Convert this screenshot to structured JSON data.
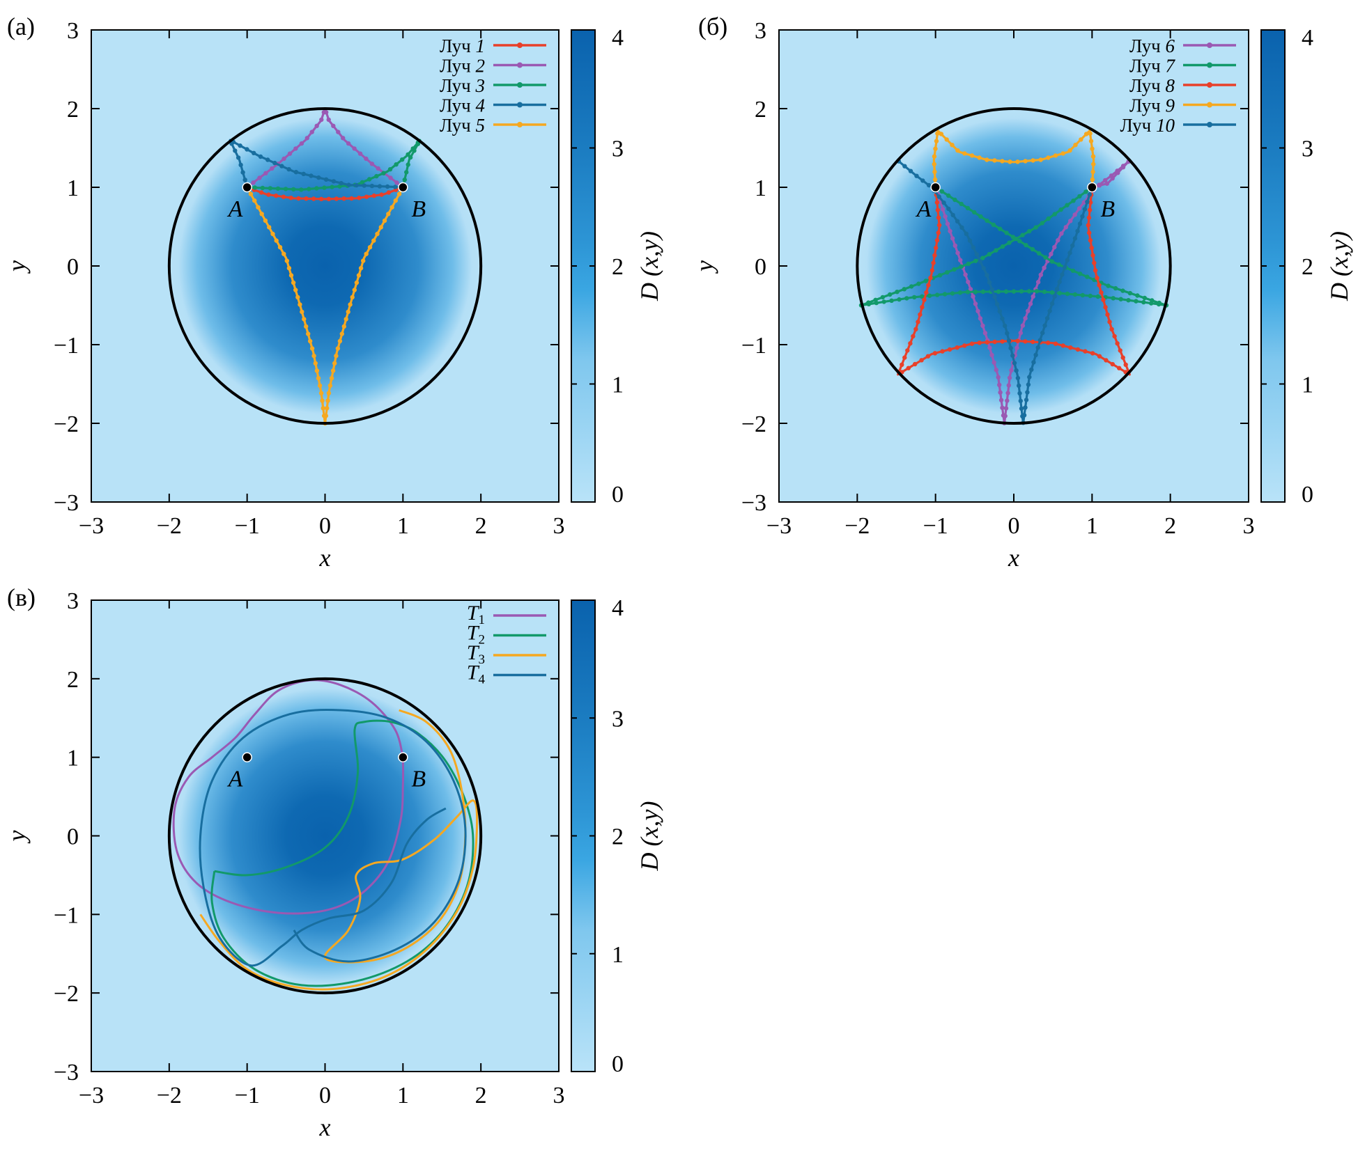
{
  "figure": {
    "circle_color": "#000000",
    "field_colors": {
      "outside": "#b8e2f7",
      "low": "#b4dff6",
      "high": "#0a62ad"
    },
    "colorbar": {
      "label": "D (x,y)",
      "ticks": [
        "0",
        "1",
        "2",
        "3",
        "4"
      ],
      "range": [
        0,
        4
      ]
    },
    "marker_labels": {
      "A": "A",
      "B": "B"
    }
  },
  "chart_data": [
    {
      "type": "line",
      "panel_label": "(а)",
      "xlabel": "x",
      "ylabel": "y",
      "xlim": [
        -3,
        3
      ],
      "ylim": [
        -3,
        3
      ],
      "xticks": [
        "−3",
        "−2",
        "−1",
        "0",
        "1",
        "2",
        "3"
      ],
      "yticks": [
        "−3",
        "−2",
        "−1",
        "0",
        "1",
        "2",
        "3"
      ],
      "circle_radius": 2,
      "points": [
        {
          "name": "A",
          "x": -1,
          "y": 1
        },
        {
          "name": "B",
          "x": 1,
          "y": 1
        }
      ],
      "legend_position": "top-right",
      "series": [
        {
          "name": "Луч 1",
          "label": "Луч",
          "num": "1",
          "color": "#e8402a",
          "markers": true,
          "points": [
            [
              -1,
              1
            ],
            [
              -0.75,
              0.91
            ],
            [
              -0.4,
              0.86
            ],
            [
              0,
              0.85
            ],
            [
              0.4,
              0.86
            ],
            [
              0.75,
              0.91
            ],
            [
              1,
              1
            ]
          ]
        },
        {
          "name": "Луч 2",
          "label": "Луч",
          "num": "2",
          "color": "#9a59b3",
          "markers": true,
          "points": [
            [
              -1,
              1
            ],
            [
              -0.6,
              1.3
            ],
            [
              -0.25,
              1.6
            ],
            [
              -0.05,
              1.85
            ],
            [
              0,
              2.0
            ],
            [
              0.05,
              1.85
            ],
            [
              0.25,
              1.6
            ],
            [
              0.6,
              1.3
            ],
            [
              1,
              1
            ]
          ]
        },
        {
          "name": "Луч 3",
          "label": "Луч",
          "num": "3",
          "color": "#12996a",
          "markers": true,
          "points": [
            [
              -1,
              1
            ],
            [
              -0.3,
              0.97
            ],
            [
              0.4,
              1.03
            ],
            [
              0.8,
              1.2
            ],
            [
              1.05,
              1.4
            ],
            [
              1.22,
              1.6
            ],
            [
              1.08,
              1.35
            ],
            [
              1,
              1
            ]
          ]
        },
        {
          "name": "Луч 4",
          "label": "Луч",
          "num": "4",
          "color": "#186e9f",
          "markers": true,
          "points": [
            [
              1,
              1
            ],
            [
              0.3,
              1.03
            ],
            [
              -0.4,
              1.2
            ],
            [
              -0.85,
              1.4
            ],
            [
              -1.22,
              1.6
            ],
            [
              -1.1,
              1.35
            ],
            [
              -1,
              1
            ]
          ]
        },
        {
          "name": "Луч 5",
          "label": "Луч",
          "num": "5",
          "color": "#f5a821",
          "markers": true,
          "points": [
            [
              -1,
              1
            ],
            [
              -0.75,
              0.55
            ],
            [
              -0.5,
              0.1
            ],
            [
              -0.32,
              -0.5
            ],
            [
              -0.15,
              -1.1
            ],
            [
              -0.05,
              -1.6
            ],
            [
              0,
              -2.0
            ],
            [
              0.05,
              -1.6
            ],
            [
              0.15,
              -1.1
            ],
            [
              0.32,
              -0.5
            ],
            [
              0.5,
              0.1
            ],
            [
              0.75,
              0.55
            ],
            [
              1,
              1
            ]
          ]
        }
      ]
    },
    {
      "type": "line",
      "panel_label": "(б)",
      "xlabel": "x",
      "ylabel": "y",
      "xlim": [
        -3,
        3
      ],
      "ylim": [
        -3,
        3
      ],
      "xticks": [
        "−3",
        "−2",
        "−1",
        "0",
        "1",
        "2",
        "3"
      ],
      "yticks": [
        "−3",
        "−2",
        "−1",
        "0",
        "1",
        "2",
        "3"
      ],
      "circle_radius": 2,
      "points": [
        {
          "name": "A",
          "x": -1,
          "y": 1
        },
        {
          "name": "B",
          "x": 1,
          "y": 1
        }
      ],
      "legend_position": "top-right",
      "series": [
        {
          "name": "Луч 6",
          "label": "Луч",
          "num": "6",
          "color": "#9a59b3",
          "markers": true,
          "points": [
            [
              -1,
              1
            ],
            [
              -0.8,
              0.4
            ],
            [
              -0.55,
              -0.3
            ],
            [
              -0.35,
              -0.9
            ],
            [
              -0.2,
              -1.4
            ],
            [
              -0.12,
              -2.0
            ],
            [
              -0.05,
              -1.4
            ],
            [
              0.1,
              -0.8
            ],
            [
              0.35,
              -0.1
            ],
            [
              0.6,
              0.4
            ],
            [
              0.85,
              0.75
            ],
            [
              1.05,
              1.0
            ],
            [
              1.25,
              1.15
            ],
            [
              1.47,
              1.33
            ],
            [
              1.2,
              1.05
            ],
            [
              1,
              1
            ]
          ]
        },
        {
          "name": "Луч 7",
          "label": "Луч",
          "num": "7",
          "color": "#12996a",
          "markers": true,
          "points": [
            [
              -1,
              1
            ],
            [
              -0.3,
              0.55
            ],
            [
              0.5,
              0.05
            ],
            [
              1.2,
              -0.25
            ],
            [
              1.95,
              -0.5
            ],
            [
              1.2,
              -0.4
            ],
            [
              0.3,
              -0.32
            ],
            [
              -0.6,
              -0.33
            ],
            [
              -1.3,
              -0.4
            ],
            [
              -1.95,
              -0.5
            ],
            [
              -1.2,
              -0.22
            ],
            [
              -0.4,
              0.1
            ],
            [
              0.3,
              0.5
            ],
            [
              1,
              1
            ]
          ]
        },
        {
          "name": "Луч 8",
          "label": "Луч",
          "num": "8",
          "color": "#e8402a",
          "markers": true,
          "points": [
            [
              -1,
              1
            ],
            [
              -0.95,
              0.5
            ],
            [
              -1.05,
              -0.1
            ],
            [
              -1.25,
              -0.8
            ],
            [
              -1.48,
              -1.38
            ],
            [
              -1.05,
              -1.12
            ],
            [
              -0.5,
              -0.98
            ],
            [
              0,
              -0.95
            ],
            [
              0.5,
              -0.98
            ],
            [
              1.05,
              -1.12
            ],
            [
              1.48,
              -1.38
            ],
            [
              1.25,
              -0.8
            ],
            [
              1.05,
              -0.1
            ],
            [
              0.95,
              0.5
            ],
            [
              1,
              1
            ]
          ]
        },
        {
          "name": "Луч 9",
          "label": "Луч",
          "num": "9",
          "color": "#f5a821",
          "markers": true,
          "points": [
            [
              -1,
              1
            ],
            [
              -1.02,
              1.35
            ],
            [
              -0.97,
              1.72
            ],
            [
              -0.7,
              1.45
            ],
            [
              -0.35,
              1.35
            ],
            [
              0,
              1.32
            ],
            [
              0.35,
              1.35
            ],
            [
              0.7,
              1.45
            ],
            [
              0.97,
              1.72
            ],
            [
              1.02,
              1.35
            ],
            [
              1,
              1
            ]
          ]
        },
        {
          "name": "Луч 10",
          "label": "Луч",
          "num": "10",
          "color": "#186e9f",
          "markers": true,
          "points": [
            [
              -1.47,
              1.33
            ],
            [
              -1.25,
              1.15
            ],
            [
              -1.05,
              1.0
            ],
            [
              -0.85,
              0.75
            ],
            [
              -0.6,
              0.4
            ],
            [
              -0.35,
              -0.1
            ],
            [
              -0.1,
              -0.8
            ],
            [
              0.05,
              -1.4
            ],
            [
              0.12,
              -2.0
            ],
            [
              0.2,
              -1.4
            ],
            [
              0.35,
              -0.9
            ],
            [
              0.55,
              -0.3
            ],
            [
              0.8,
              0.4
            ],
            [
              1,
              1
            ]
          ]
        }
      ]
    },
    {
      "type": "line",
      "panel_label": "(в)",
      "xlabel": "x",
      "ylabel": "y",
      "xlim": [
        -3,
        3
      ],
      "ylim": [
        -3,
        3
      ],
      "xticks": [
        "−3",
        "−2",
        "−1",
        "0",
        "1",
        "2",
        "3"
      ],
      "yticks": [
        "−3",
        "−2",
        "−1",
        "0",
        "1",
        "2",
        "3"
      ],
      "circle_radius": 2,
      "points": [
        {
          "name": "A",
          "x": -1,
          "y": 1
        },
        {
          "name": "B",
          "x": 1,
          "y": 1
        }
      ],
      "legend_position": "top-right",
      "series": [
        {
          "name": "T1",
          "label": "T",
          "num": "1",
          "color": "#9a59b3",
          "markers": false,
          "points": [
            [
              1,
              1
            ],
            [
              0.9,
              1.35
            ],
            [
              0.6,
              1.7
            ],
            [
              0.2,
              1.92
            ],
            [
              -0.2,
              1.98
            ],
            [
              -0.6,
              1.85
            ],
            [
              -0.9,
              1.55
            ],
            [
              -1.15,
              1.25
            ],
            [
              -1.45,
              1.0
            ],
            [
              -1.75,
              0.75
            ],
            [
              -1.93,
              0.35
            ],
            [
              -1.9,
              -0.2
            ],
            [
              -1.65,
              -0.6
            ],
            [
              -1.2,
              -0.85
            ],
            [
              -0.6,
              -0.98
            ],
            [
              0,
              -0.95
            ],
            [
              0.45,
              -0.75
            ],
            [
              0.8,
              -0.35
            ],
            [
              0.97,
              0.2
            ],
            [
              1.0,
              0.65
            ],
            [
              1,
              1
            ]
          ]
        },
        {
          "name": "T2",
          "label": "T",
          "num": "2",
          "color": "#12996a",
          "markers": false,
          "points": [
            [
              -1.42,
              -0.45
            ],
            [
              -1.0,
              -0.5
            ],
            [
              -0.5,
              -0.4
            ],
            [
              0,
              -0.15
            ],
            [
              0.3,
              0.25
            ],
            [
              0.42,
              0.8
            ],
            [
              0.38,
              1.35
            ],
            [
              0.5,
              1.45
            ],
            [
              0.85,
              1.45
            ],
            [
              1.2,
              1.3
            ],
            [
              1.55,
              0.95
            ],
            [
              1.8,
              0.45
            ],
            [
              1.9,
              -0.05
            ],
            [
              1.82,
              -0.65
            ],
            [
              1.52,
              -1.2
            ],
            [
              1.05,
              -1.6
            ],
            [
              0.4,
              -1.85
            ],
            [
              -0.3,
              -1.9
            ],
            [
              -0.9,
              -1.7
            ],
            [
              -1.3,
              -1.3
            ],
            [
              -1.45,
              -0.85
            ],
            [
              -1.42,
              -0.45
            ]
          ]
        },
        {
          "name": "T3",
          "label": "T",
          "num": "3",
          "color": "#f5a821",
          "markers": false,
          "points": [
            [
              0.95,
              1.6
            ],
            [
              1.3,
              1.45
            ],
            [
              1.6,
              1.1
            ],
            [
              1.75,
              0.6
            ],
            [
              1.8,
              0.0
            ],
            [
              1.72,
              -0.6
            ],
            [
              1.45,
              -1.1
            ],
            [
              1.0,
              -1.45
            ],
            [
              0.5,
              -1.6
            ],
            [
              0.0,
              -1.55
            ],
            [
              0.3,
              -1.2
            ],
            [
              0.45,
              -0.8
            ],
            [
              0.4,
              -0.5
            ],
            [
              0.62,
              -0.35
            ],
            [
              1.0,
              -0.3
            ],
            [
              1.4,
              -0.05
            ],
            [
              1.7,
              0.25
            ],
            [
              1.9,
              0.45
            ],
            [
              1.95,
              0.2
            ],
            [
              1.9,
              -0.4
            ],
            [
              1.7,
              -0.95
            ],
            [
              1.3,
              -1.45
            ],
            [
              0.75,
              -1.8
            ],
            [
              0.1,
              -1.95
            ],
            [
              -0.5,
              -1.9
            ],
            [
              -1.0,
              -1.7
            ],
            [
              -1.35,
              -1.35
            ],
            [
              -1.6,
              -1.0
            ]
          ]
        },
        {
          "name": "T4",
          "label": "T",
          "num": "4",
          "color": "#186e9f",
          "markers": false,
          "points": [
            [
              1.55,
              0.35
            ],
            [
              1.3,
              0.2
            ],
            [
              1.05,
              -0.1
            ],
            [
              0.85,
              -0.6
            ],
            [
              0.5,
              -0.95
            ],
            [
              0.05,
              -1.05
            ],
            [
              -0.3,
              -1.2
            ],
            [
              -0.55,
              -1.4
            ],
            [
              -0.95,
              -1.65
            ],
            [
              -1.35,
              -1.3
            ],
            [
              -1.55,
              -0.7
            ],
            [
              -1.6,
              0
            ],
            [
              -1.45,
              0.7
            ],
            [
              -1.05,
              1.25
            ],
            [
              -0.45,
              1.55
            ],
            [
              0.2,
              1.6
            ],
            [
              0.8,
              1.5
            ],
            [
              1.3,
              1.2
            ],
            [
              1.65,
              0.7
            ],
            [
              1.8,
              0.1
            ],
            [
              1.72,
              -0.55
            ],
            [
              1.4,
              -1.1
            ],
            [
              0.9,
              -1.45
            ],
            [
              0.3,
              -1.6
            ],
            [
              -0.2,
              -1.45
            ],
            [
              -0.4,
              -1.2
            ]
          ]
        }
      ]
    }
  ]
}
